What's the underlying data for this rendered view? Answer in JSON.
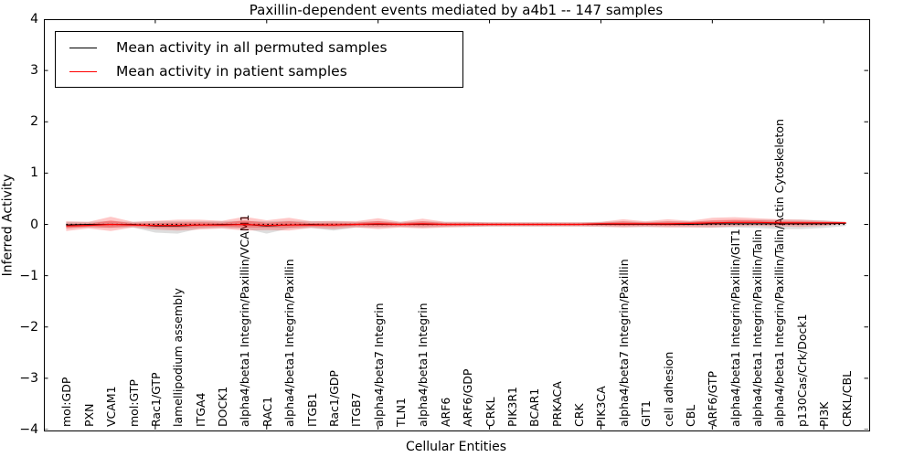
{
  "figure": {
    "title": "Paxillin-dependent events mediated by a4b1 -- 147 samples",
    "xlabel": "Cellular Entities",
    "ylabel": "Inferred Activity"
  },
  "legend": {
    "items": [
      {
        "label": "Mean activity in all permuted samples",
        "color": "#000000"
      },
      {
        "label": "Mean activity in patient samples",
        "color": "#ff0000"
      }
    ]
  },
  "chart_data": {
    "type": "line",
    "title": "Paxillin-dependent events mediated by a4b1 -- 147 samples",
    "xlabel": "Cellular Entities",
    "ylabel": "Inferred Activity",
    "ylim": [
      -4,
      4
    ],
    "yticks": [
      4,
      3,
      2,
      1,
      0,
      -1,
      -2,
      -3,
      -4
    ],
    "grid": false,
    "legend_position": "upper left",
    "zero_line": 0,
    "band_colors": {
      "permuted": "rgba(0,0,0,0.13)",
      "patient": "rgba(255,0,0,0.22)"
    },
    "categories": [
      "mol:GDP",
      "PXN",
      "VCAM1",
      "mol:GTP",
      "Rac1/GTP",
      "lamellipodium assembly",
      "ITGA4",
      "DOCK1",
      "alpha4/beta1 Integrin/Paxillin/VCAM1",
      "RAC1",
      "alpha4/beta1 Integrin/Paxillin",
      "ITGB1",
      "Rac1/GDP",
      "ITGB7",
      "alpha4/beta7 Integrin",
      "TLN1",
      "alpha4/beta1 Integrin",
      "ARF6",
      "ARF6/GDP",
      "CRKL",
      "PIK3R1",
      "BCAR1",
      "PRKACA",
      "CRK",
      "PIK3CA",
      "alpha4/beta7 Integrin/Paxillin",
      "GIT1",
      "cell adhesion",
      "CBL",
      "ARF6/GTP",
      "alpha4/beta1 Integrin/Paxillin/GIT1",
      "alpha4/beta1 Integrin/Paxillin/Talin",
      "alpha4/beta1 Integrin/Paxillin/Talin/Actin Cytoskeleton",
      "p130Cas/Crk/Dock1",
      "PI3K",
      "CRKL/CBL"
    ],
    "series": [
      {
        "name": "Mean activity in all permuted samples",
        "color": "#000000",
        "mean": [
          -0.01,
          0,
          0,
          0,
          -0.03,
          -0.03,
          -0.01,
          0,
          0,
          -0.03,
          -0.01,
          0,
          -0.01,
          0,
          0,
          0,
          0,
          0,
          0,
          0,
          0,
          0,
          0,
          0,
          0,
          0,
          0,
          0,
          0,
          0.01,
          0.01,
          0.01,
          0.01,
          0.01,
          0.01,
          0.02
        ],
        "lo": [
          -0.07,
          -0.06,
          -0.07,
          -0.06,
          -0.16,
          -0.18,
          -0.08,
          -0.07,
          -0.08,
          -0.18,
          -0.08,
          -0.07,
          -0.12,
          -0.06,
          -0.06,
          -0.05,
          -0.06,
          -0.05,
          -0.05,
          -0.04,
          -0.04,
          -0.04,
          -0.04,
          -0.04,
          -0.04,
          -0.05,
          -0.05,
          -0.05,
          -0.05,
          -0.06,
          -0.06,
          -0.07,
          -0.09,
          -0.09,
          -0.07,
          -0.03
        ],
        "hi": [
          0.05,
          0.05,
          0.06,
          0.05,
          0.06,
          0.06,
          0.06,
          0.06,
          0.07,
          0.06,
          0.07,
          0.06,
          0.06,
          0.05,
          0.06,
          0.05,
          0.06,
          0.05,
          0.05,
          0.04,
          0.04,
          0.04,
          0.04,
          0.04,
          0.05,
          0.06,
          0.05,
          0.06,
          0.06,
          0.07,
          0.08,
          0.09,
          0.09,
          0.09,
          0.08,
          0.05
        ]
      },
      {
        "name": "Mean activity in patient samples",
        "color": "#ff0000",
        "mean": [
          -0.03,
          -0.02,
          0,
          -0.01,
          -0.02,
          -0.02,
          -0.01,
          -0.01,
          0,
          -0.02,
          -0.01,
          -0.01,
          -0.01,
          0,
          0.01,
          0,
          0.01,
          0,
          0,
          0,
          0,
          0,
          0,
          0,
          0.01,
          0.01,
          0.01,
          0.01,
          0.02,
          0.03,
          0.04,
          0.04,
          0.03,
          0.03,
          0.03,
          0.03
        ],
        "lo": [
          -0.13,
          -0.08,
          -0.13,
          -0.06,
          -0.1,
          -0.12,
          -0.1,
          -0.08,
          -0.12,
          -0.11,
          -0.12,
          -0.07,
          -0.09,
          -0.06,
          -0.09,
          -0.06,
          -0.08,
          -0.06,
          -0.05,
          -0.04,
          -0.04,
          -0.04,
          -0.04,
          -0.04,
          -0.05,
          -0.06,
          -0.05,
          -0.06,
          -0.06,
          -0.06,
          -0.04,
          -0.03,
          -0.04,
          -0.05,
          -0.03,
          0.01
        ],
        "hi": [
          0.06,
          0.05,
          0.15,
          0.05,
          0.07,
          0.09,
          0.09,
          0.07,
          0.15,
          0.08,
          0.13,
          0.06,
          0.07,
          0.06,
          0.12,
          0.05,
          0.11,
          0.05,
          0.05,
          0.04,
          0.04,
          0.04,
          0.04,
          0.04,
          0.05,
          0.1,
          0.06,
          0.1,
          0.07,
          0.13,
          0.14,
          0.12,
          0.1,
          0.09,
          0.07,
          0.05
        ]
      }
    ]
  }
}
